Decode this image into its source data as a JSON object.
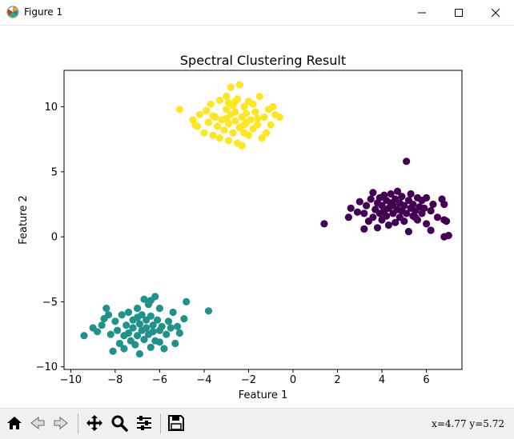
{
  "window": {
    "title": "Figure 1",
    "app_icon": "matplotlib-icon",
    "controls": [
      "minimize-icon",
      "maximize-icon",
      "close-icon"
    ]
  },
  "toolbar": {
    "buttons": [
      "home-icon",
      "back-icon",
      "forward-icon",
      "pan-icon",
      "zoom-icon",
      "configure-subplots-icon",
      "save-icon"
    ],
    "coords": "x=4.77 y=5.72"
  },
  "chart_data": {
    "type": "scatter",
    "title": "Spectral Clustering Result",
    "xlabel": "Feature 1",
    "ylabel": "Feature 2",
    "xlim": [
      -10.3,
      7.6
    ],
    "ylim": [
      -10.2,
      12.8
    ],
    "xticks": [
      -10,
      -8,
      -6,
      -4,
      -2,
      0,
      2,
      4,
      6
    ],
    "yticks": [
      -10,
      -5,
      0,
      5,
      10
    ],
    "xtick_labels": [
      "−10",
      "−8",
      "−6",
      "−4",
      "−2",
      "0",
      "2",
      "4",
      "6"
    ],
    "ytick_labels": [
      "−10",
      "−5",
      "0",
      "5",
      "10"
    ],
    "grid": false,
    "legend": "none",
    "series": [
      {
        "color": "#440154",
        "points": [
          [
            1.4,
            1.0
          ],
          [
            2.5,
            1.5
          ],
          [
            2.6,
            2.2
          ],
          [
            2.9,
            1.9
          ],
          [
            3.0,
            2.7
          ],
          [
            3.2,
            1.8
          ],
          [
            3.2,
            0.6
          ],
          [
            3.3,
            2.4
          ],
          [
            3.4,
            1.2
          ],
          [
            3.5,
            2.9
          ],
          [
            3.6,
            1.5
          ],
          [
            3.6,
            3.4
          ],
          [
            3.7,
            2.1
          ],
          [
            3.8,
            0.7
          ],
          [
            3.8,
            2.6
          ],
          [
            3.9,
            1.8
          ],
          [
            3.9,
            3.0
          ],
          [
            4.0,
            1.3
          ],
          [
            4.0,
            2.4
          ],
          [
            4.1,
            2.0
          ],
          [
            4.1,
            3.2
          ],
          [
            4.2,
            1.6
          ],
          [
            4.2,
            2.8
          ],
          [
            4.3,
            2.2
          ],
          [
            4.3,
            0.9
          ],
          [
            4.4,
            2.6
          ],
          [
            4.4,
            3.3
          ],
          [
            4.5,
            1.8
          ],
          [
            4.5,
            2.4
          ],
          [
            4.6,
            1.1
          ],
          [
            4.6,
            2.9
          ],
          [
            4.7,
            2.1
          ],
          [
            4.7,
            3.5
          ],
          [
            4.8,
            1.5
          ],
          [
            4.8,
            2.6
          ],
          [
            4.9,
            2.0
          ],
          [
            4.9,
            3.1
          ],
          [
            5.0,
            1.2
          ],
          [
            5.0,
            2.4
          ],
          [
            5.1,
            5.8
          ],
          [
            5.1,
            1.8
          ],
          [
            5.2,
            2.8
          ],
          [
            5.2,
            0.4
          ],
          [
            5.3,
            2.2
          ],
          [
            5.3,
            3.3
          ],
          [
            5.4,
            1.6
          ],
          [
            5.4,
            2.5
          ],
          [
            5.5,
            2.0
          ],
          [
            5.6,
            3.0
          ],
          [
            5.6,
            1.3
          ],
          [
            5.7,
            2.3
          ],
          [
            5.8,
            1.8
          ],
          [
            5.8,
            2.8
          ],
          [
            5.9,
            2.2
          ],
          [
            6.0,
            1.0
          ],
          [
            6.0,
            3.0
          ],
          [
            6.2,
            2.0
          ],
          [
            6.3,
            2.5
          ],
          [
            6.5,
            1.5
          ],
          [
            6.7,
            2.9
          ],
          [
            6.8,
            1.3
          ],
          [
            6.8,
            0.0
          ],
          [
            6.8,
            2.5
          ],
          [
            6.9,
            1.2
          ],
          [
            7.0,
            0.1
          ],
          [
            6.2,
            0.5
          ],
          [
            5.5,
            1.5
          ]
        ]
      },
      {
        "color": "#21918c",
        "points": [
          [
            -9.4,
            -7.6
          ],
          [
            -9.0,
            -7.0
          ],
          [
            -8.8,
            -7.3
          ],
          [
            -8.6,
            -6.8
          ],
          [
            -8.4,
            -5.5
          ],
          [
            -8.3,
            -6.0
          ],
          [
            -8.2,
            -7.5
          ],
          [
            -8.1,
            -8.8
          ],
          [
            -8.0,
            -6.5
          ],
          [
            -7.9,
            -7.2
          ],
          [
            -7.8,
            -8.2
          ],
          [
            -7.7,
            -6.0
          ],
          [
            -7.6,
            -7.6
          ],
          [
            -7.6,
            -8.6
          ],
          [
            -7.5,
            -6.8
          ],
          [
            -7.4,
            -7.4
          ],
          [
            -7.4,
            -5.8
          ],
          [
            -7.3,
            -8.0
          ],
          [
            -7.2,
            -6.4
          ],
          [
            -7.2,
            -7.0
          ],
          [
            -7.1,
            -8.3
          ],
          [
            -7.0,
            -5.5
          ],
          [
            -7.0,
            -7.6
          ],
          [
            -6.9,
            -9.0
          ],
          [
            -6.9,
            -6.7
          ],
          [
            -6.8,
            -7.2
          ],
          [
            -6.8,
            -6.0
          ],
          [
            -6.7,
            -7.9
          ],
          [
            -6.6,
            -6.4
          ],
          [
            -6.6,
            -7.0
          ],
          [
            -6.5,
            -5.2
          ],
          [
            -6.5,
            -7.5
          ],
          [
            -6.4,
            -6.1
          ],
          [
            -6.4,
            -8.5
          ],
          [
            -6.3,
            -6.8
          ],
          [
            -6.3,
            -7.3
          ],
          [
            -6.2,
            -4.6
          ],
          [
            -6.2,
            -8.0
          ],
          [
            -6.1,
            -6.4
          ],
          [
            -6.0,
            -7.2
          ],
          [
            -6.0,
            -5.5
          ],
          [
            -5.9,
            -6.9
          ],
          [
            -5.8,
            -8.6
          ],
          [
            -5.7,
            -7.5
          ],
          [
            -5.6,
            -6.5
          ],
          [
            -5.5,
            -7.0
          ],
          [
            -5.4,
            -5.8
          ],
          [
            -5.3,
            -8.2
          ],
          [
            -5.2,
            -6.9
          ],
          [
            -5.1,
            -7.4
          ],
          [
            -4.9,
            -6.3
          ],
          [
            -4.8,
            -5.0
          ],
          [
            -3.8,
            -5.7
          ],
          [
            -6.7,
            -4.8
          ],
          [
            -6.0,
            -8.1
          ],
          [
            -7.0,
            -6.2
          ],
          [
            -8.5,
            -6.3
          ],
          [
            -6.4,
            -4.9
          ]
        ]
      },
      {
        "color": "#fde725",
        "points": [
          [
            -5.1,
            9.8
          ],
          [
            -4.5,
            9.0
          ],
          [
            -4.3,
            8.5
          ],
          [
            -4.2,
            9.4
          ],
          [
            -4.0,
            8.0
          ],
          [
            -3.9,
            9.7
          ],
          [
            -3.8,
            8.8
          ],
          [
            -3.7,
            10.2
          ],
          [
            -3.6,
            7.8
          ],
          [
            -3.5,
            9.2
          ],
          [
            -3.4,
            8.5
          ],
          [
            -3.3,
            10.5
          ],
          [
            -3.3,
            7.6
          ],
          [
            -3.2,
            9.0
          ],
          [
            -3.1,
            8.2
          ],
          [
            -3.0,
            9.8
          ],
          [
            -3.0,
            10.8
          ],
          [
            -2.9,
            8.7
          ],
          [
            -2.9,
            7.4
          ],
          [
            -2.8,
            9.4
          ],
          [
            -2.8,
            11.5
          ],
          [
            -2.7,
            8.0
          ],
          [
            -2.7,
            10.1
          ],
          [
            -2.6,
            8.9
          ],
          [
            -2.6,
            9.6
          ],
          [
            -2.5,
            7.2
          ],
          [
            -2.5,
            10.6
          ],
          [
            -2.4,
            8.4
          ],
          [
            -2.4,
            11.7
          ],
          [
            -2.3,
            9.2
          ],
          [
            -2.3,
            7.0
          ],
          [
            -2.2,
            10.0
          ],
          [
            -2.2,
            8.0
          ],
          [
            -2.1,
            9.5
          ],
          [
            -2.1,
            8.8
          ],
          [
            -2.0,
            10.4
          ],
          [
            -2.0,
            7.8
          ],
          [
            -1.9,
            9.0
          ],
          [
            -1.8,
            8.3
          ],
          [
            -1.8,
            10.2
          ],
          [
            -1.7,
            9.6
          ],
          [
            -1.6,
            8.6
          ],
          [
            -1.5,
            10.8
          ],
          [
            -1.4,
            7.6
          ],
          [
            -1.3,
            9.2
          ],
          [
            -1.2,
            8.0
          ],
          [
            -1.1,
            9.8
          ],
          [
            -1.0,
            8.6
          ],
          [
            -0.9,
            10.0
          ],
          [
            -0.8,
            9.4
          ],
          [
            -0.6,
            9.2
          ],
          [
            -3.6,
            9.3
          ],
          [
            -2.6,
            10.4
          ],
          [
            -1.6,
            9.1
          ],
          [
            -3.0,
            9.1
          ],
          [
            -2.2,
            8.6
          ],
          [
            -4.4,
            8.6
          ],
          [
            -2.9,
            10.3
          ]
        ]
      }
    ]
  }
}
